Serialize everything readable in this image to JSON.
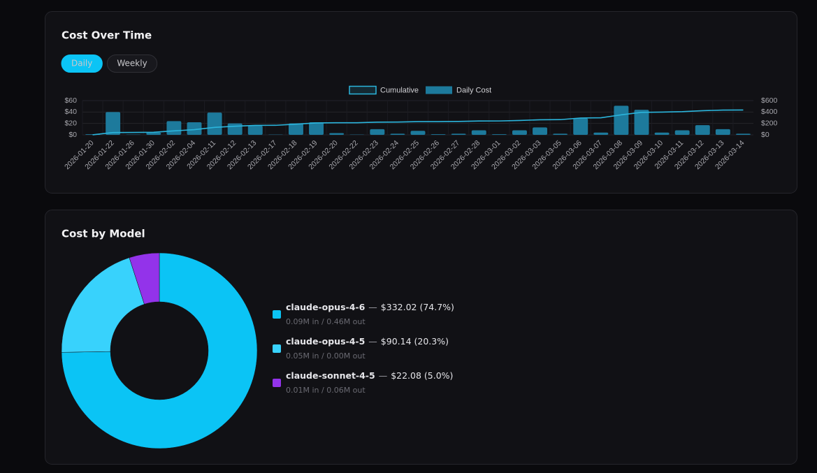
{
  "view_options": [
    "Daily",
    "Weekly"
  ],
  "active_view_index": 0,
  "chart_data": [
    {
      "type": "bar",
      "title": "Cost Over Time",
      "categories": [
        "2026-01-20",
        "2026-01-22",
        "2026-01-26",
        "2026-01-30",
        "2026-02-02",
        "2026-02-04",
        "2026-02-11",
        "2026-02-12",
        "2026-02-13",
        "2026-02-17",
        "2026-02-18",
        "2026-02-19",
        "2026-02-20",
        "2026-02-22",
        "2026-02-23",
        "2026-02-24",
        "2026-02-25",
        "2026-02-26",
        "2026-02-27",
        "2026-02-28",
        "2026-03-01",
        "2026-03-02",
        "2026-03-03",
        "2026-03-05",
        "2026-03-06",
        "2026-03-07",
        "2026-03-08",
        "2026-03-09",
        "2026-03-10",
        "2026-03-11",
        "2026-03-12",
        "2026-03-13",
        "2026-03-14"
      ],
      "series": [
        {
          "name": "Cumulative",
          "type": "line",
          "axis": "y2",
          "color": "#2bb5dc",
          "values": [
            1,
            41,
            41.5,
            45.5,
            69.5,
            91.5,
            130.5,
            150.5,
            166.5,
            167,
            187,
            209,
            212,
            212.5,
            222.5,
            224.5,
            231.5,
            232.5,
            234.5,
            242.5,
            243.5,
            251.5,
            264.5,
            266.5,
            295.5,
            299.5,
            350.5,
            394.5,
            398.5,
            406.5,
            423.5,
            433.5,
            435.5
          ]
        },
        {
          "name": "Daily Cost",
          "type": "bar",
          "color": "#1d7a9c",
          "values": [
            1,
            40,
            0.5,
            4,
            24,
            22,
            39,
            20,
            16,
            0.5,
            20,
            22,
            3,
            0.5,
            10,
            2,
            7,
            1,
            2,
            8,
            1,
            8,
            13,
            2,
            29,
            4,
            51,
            44,
            4,
            8,
            17,
            10,
            2
          ]
        }
      ],
      "ylim": [
        0,
        60
      ],
      "yticks": [
        {
          "value": 0,
          "label": "$0"
        },
        {
          "value": 20,
          "label": "$20"
        },
        {
          "value": 40,
          "label": "$40"
        },
        {
          "value": 60,
          "label": "$60"
        }
      ],
      "y2lim": [
        0,
        600
      ],
      "y2ticks": [
        {
          "value": 0,
          "label": "$0"
        },
        {
          "value": 200,
          "label": "$200"
        },
        {
          "value": 400,
          "label": "$400"
        },
        {
          "value": 600,
          "label": "$600"
        }
      ],
      "grid": true,
      "legend": "top"
    },
    {
      "type": "pie",
      "title": "Cost by Model",
      "donut": true,
      "categories": [
        "claude-opus-4-6",
        "claude-opus-4-5",
        "claude-sonnet-4-5"
      ],
      "values": [
        332.02,
        90.14,
        22.08
      ],
      "value_labels": [
        "$332.02 (74.7%)",
        "$90.14 (20.3%)",
        "$22.08 (5.0%)"
      ],
      "separator": "—",
      "details": [
        "0.09M in / 0.46M out",
        "0.05M in / 0.00M out",
        "0.01M in / 0.06M out"
      ],
      "colors": [
        "#0bc4f5",
        "#38d2fc",
        "#9333ea"
      ],
      "legend": "right"
    }
  ]
}
